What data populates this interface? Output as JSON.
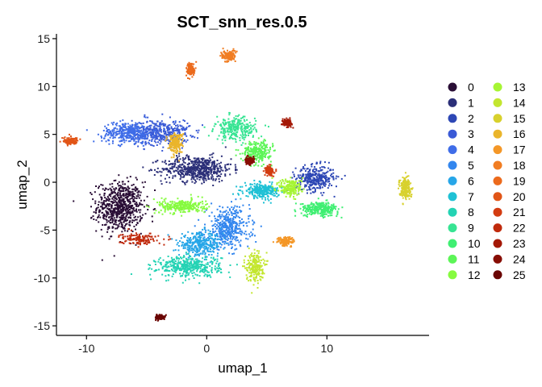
{
  "chart_data": {
    "type": "scatter",
    "title": "SCT_snn_res.0.5",
    "xlabel": "umap_1",
    "ylabel": "umap_2",
    "xlim": [
      -12.5,
      18.5
    ],
    "ylim": [
      -16,
      15.5
    ],
    "x_ticks": [
      -10,
      0,
      10
    ],
    "y_ticks": [
      -15,
      -10,
      -5,
      0,
      5,
      10,
      15
    ],
    "grid": false,
    "legend_position": "right",
    "legend_columns": 2,
    "clusters": [
      {
        "name": "0",
        "color": "#2a0e36",
        "center": [
          -7.2,
          -2.6
        ],
        "spread": [
          1.6,
          2.2
        ],
        "weight": 9
      },
      {
        "name": "1",
        "color": "#2b2f78",
        "center": [
          -0.8,
          1.4
        ],
        "spread": [
          2.4,
          1.1
        ],
        "weight": 7
      },
      {
        "name": "2",
        "color": "#2d47b5",
        "center": [
          9.0,
          0.4
        ],
        "spread": [
          1.3,
          1.1
        ],
        "weight": 4
      },
      {
        "name": "3",
        "color": "#3a5ad6",
        "center": [
          -3.8,
          5.2
        ],
        "spread": [
          2.0,
          1.1
        ],
        "weight": 5
      },
      {
        "name": "4",
        "color": "#3f6de8",
        "center": [
          -6.5,
          5.2
        ],
        "spread": [
          1.8,
          0.9
        ],
        "weight": 4
      },
      {
        "name": "5",
        "color": "#3386ee",
        "center": [
          1.8,
          -4.8
        ],
        "spread": [
          1.5,
          1.8
        ],
        "weight": 5
      },
      {
        "name": "6",
        "color": "#27a6e8",
        "center": [
          -0.5,
          -6.5
        ],
        "spread": [
          1.5,
          1.0
        ],
        "weight": 4
      },
      {
        "name": "7",
        "color": "#1fc1d5",
        "center": [
          4.6,
          -0.9
        ],
        "spread": [
          1.2,
          0.6
        ],
        "weight": 3
      },
      {
        "name": "8",
        "color": "#24d3b4",
        "center": [
          -1.5,
          -8.8
        ],
        "spread": [
          2.2,
          0.9
        ],
        "weight": 5
      },
      {
        "name": "9",
        "color": "#37e493",
        "center": [
          2.4,
          5.6
        ],
        "spread": [
          1.4,
          1.0
        ],
        "weight": 3
      },
      {
        "name": "10",
        "color": "#3fef72",
        "center": [
          9.4,
          -2.8
        ],
        "spread": [
          1.3,
          0.6
        ],
        "weight": 3
      },
      {
        "name": "11",
        "color": "#5cf557",
        "center": [
          4.2,
          3.2
        ],
        "spread": [
          1.0,
          0.9
        ],
        "weight": 3
      },
      {
        "name": "12",
        "color": "#86fb3f",
        "center": [
          -2.0,
          -2.5
        ],
        "spread": [
          1.6,
          0.6
        ],
        "weight": 3
      },
      {
        "name": "13",
        "color": "#a6f534",
        "center": [
          7.0,
          -0.6
        ],
        "spread": [
          0.8,
          0.8
        ],
        "weight": 2
      },
      {
        "name": "14",
        "color": "#c3e62f",
        "center": [
          4.0,
          -8.8
        ],
        "spread": [
          0.6,
          1.3
        ],
        "weight": 2
      },
      {
        "name": "15",
        "color": "#d8d12d",
        "center": [
          16.5,
          -0.6
        ],
        "spread": [
          0.4,
          0.9
        ],
        "weight": 2
      },
      {
        "name": "16",
        "color": "#eab52b",
        "center": [
          -2.6,
          4.1
        ],
        "spread": [
          0.5,
          0.9
        ],
        "weight": 2
      },
      {
        "name": "17",
        "color": "#f49727",
        "center": [
          6.6,
          -6.2
        ],
        "spread": [
          0.6,
          0.4
        ],
        "weight": 1
      },
      {
        "name": "18",
        "color": "#f17d22",
        "center": [
          1.8,
          13.2
        ],
        "spread": [
          0.5,
          0.5
        ],
        "weight": 1
      },
      {
        "name": "19",
        "color": "#ec6a1c",
        "center": [
          -1.3,
          11.8
        ],
        "spread": [
          0.3,
          0.6
        ],
        "weight": 1
      },
      {
        "name": "20",
        "color": "#e15517",
        "center": [
          -11.3,
          4.3
        ],
        "spread": [
          0.5,
          0.3
        ],
        "weight": 1
      },
      {
        "name": "21",
        "color": "#d33c11",
        "center": [
          5.2,
          1.2
        ],
        "spread": [
          0.3,
          0.4
        ],
        "weight": 1
      },
      {
        "name": "22",
        "color": "#c02a0c",
        "center": [
          -5.6,
          -5.9
        ],
        "spread": [
          1.3,
          0.5
        ],
        "weight": 1
      },
      {
        "name": "23",
        "color": "#a41806",
        "center": [
          6.7,
          6.2
        ],
        "spread": [
          0.3,
          0.3
        ],
        "weight": 1
      },
      {
        "name": "24",
        "color": "#870d04",
        "center": [
          3.6,
          2.2
        ],
        "spread": [
          0.3,
          0.3
        ],
        "weight": 1
      },
      {
        "name": "25",
        "color": "#6a0503",
        "center": [
          -3.9,
          -14.1
        ],
        "spread": [
          0.3,
          0.2
        ],
        "weight": 1
      }
    ]
  }
}
